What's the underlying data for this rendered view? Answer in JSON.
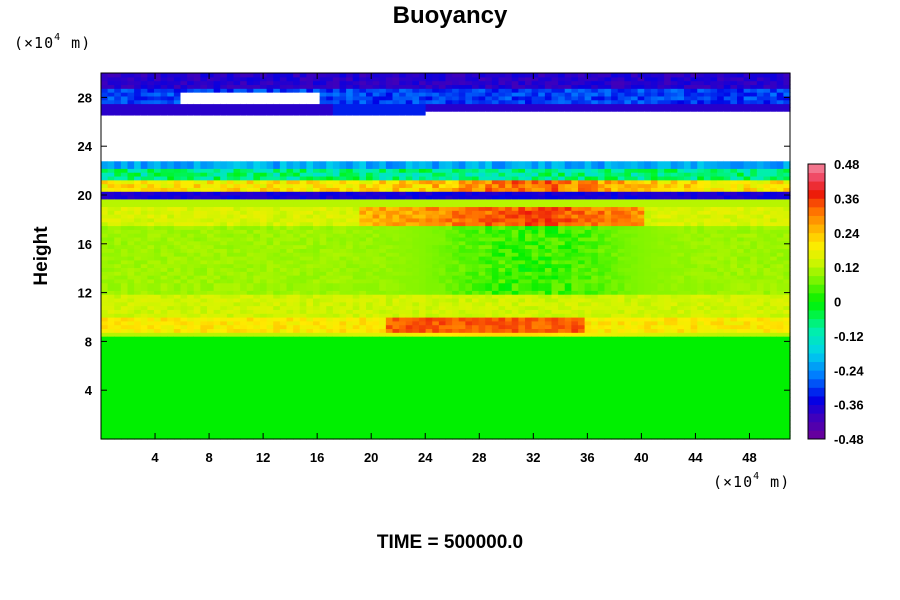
{
  "chart_data": {
    "type": "heatmap",
    "title": "Buoyancy",
    "ylabel": "Height",
    "xlabel": "",
    "x_unit": "(×10⁴ m)",
    "y_unit": "(×10⁴ m)",
    "unit_prefix": "(×10",
    "unit_exp": "4",
    "unit_suffix": " m)",
    "xlim": [
      0,
      51
    ],
    "ylim": [
      0,
      30
    ],
    "x_ticks": [
      4,
      8,
      12,
      16,
      20,
      24,
      28,
      32,
      36,
      40,
      44,
      48
    ],
    "y_ticks": [
      4,
      8,
      12,
      16,
      20,
      24,
      28
    ],
    "colorbar": {
      "range": [
        -0.48,
        0.48
      ],
      "step": 0.03,
      "ticks": [
        "0.48",
        "0.36",
        "0.24",
        "0.12",
        "0",
        "-0.12",
        "-0.24",
        "-0.36",
        "-0.48"
      ]
    },
    "field_description_bands": [
      {
        "y_range": [
          0,
          8.4
        ],
        "value": 0.0
      },
      {
        "y_range": [
          8.4,
          10.2
        ],
        "value": 0.22
      },
      {
        "y_range": [
          10.2,
          19.4
        ],
        "value": 0.08
      },
      {
        "y_range": [
          19.4,
          22.8
        ],
        "value": -0.25
      },
      {
        "y_range": [
          22.8,
          26.5
        ],
        "value": null
      },
      {
        "y_range": [
          26.5,
          30
        ],
        "value": -0.35
      }
    ],
    "grid": false,
    "legend": "colorbar-right"
  },
  "footer": {
    "time_label": "TIME = 500000.0"
  }
}
